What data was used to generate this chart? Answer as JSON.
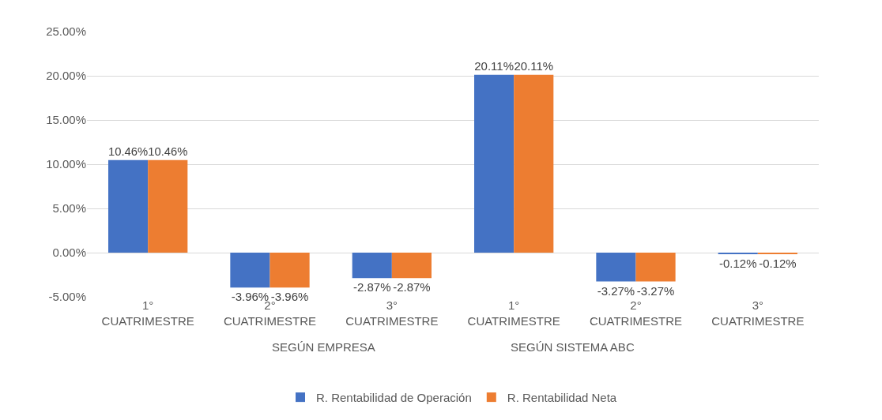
{
  "chart_data": {
    "type": "bar",
    "categories": [
      "1° CUATRIMESTRE",
      "2° CUATRIMESTRE",
      "3° CUATRIMESTRE",
      "1° CUATRIMESTRE",
      "2° CUATRIMESTRE",
      "3° CUATRIMESTRE"
    ],
    "series": [
      {
        "name": "R. Rentabilidad de Operación",
        "color": "#4472c4",
        "values": [
          10.46,
          -3.96,
          -2.87,
          20.11,
          -3.27,
          -0.12
        ],
        "value_labels": [
          "10.46%",
          "-3.96%",
          "-2.87%",
          "20.11%",
          "-3.27%",
          "-0.12%"
        ]
      },
      {
        "name": "R. Rentabilidad Neta",
        "color": "#ed7d31",
        "values": [
          10.46,
          -3.96,
          -2.87,
          20.11,
          -3.27,
          -0.12
        ],
        "value_labels": [
          "10.46%",
          "-3.96%",
          "-2.87%",
          "20.11%",
          "-3.27%",
          "-0.12%"
        ]
      }
    ],
    "annotations": [
      "SEGÚN EMPRESA",
      "SEGÚN SISTEMA ABC"
    ],
    "ylim": [
      -5,
      25
    ],
    "yticks": [
      {
        "value": -5,
        "label": "-5.00%"
      },
      {
        "value": 0,
        "label": "0.00%"
      },
      {
        "value": 5,
        "label": "5.00%"
      },
      {
        "value": 10,
        "label": "10.00%"
      },
      {
        "value": 15,
        "label": "15.00%"
      },
      {
        "value": 20,
        "label": "20.00%"
      },
      {
        "value": 25,
        "label": "25.00%"
      }
    ],
    "grid": "y",
    "legend": "bottom"
  }
}
